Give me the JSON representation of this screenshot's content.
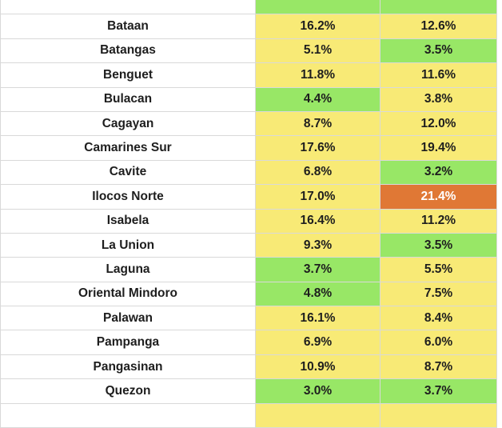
{
  "colors": {
    "yellow": "#f8ea76",
    "green": "#98e766",
    "orange": "#e07835"
  },
  "rows": [
    {
      "name": "",
      "a": "",
      "b": "",
      "a_color": "green",
      "b_color": "green"
    },
    {
      "name": "Bataan",
      "a": "16.2%",
      "b": "12.6%",
      "a_color": "yellow",
      "b_color": "yellow"
    },
    {
      "name": "Batangas",
      "a": "5.1%",
      "b": "3.5%",
      "a_color": "yellow",
      "b_color": "green"
    },
    {
      "name": "Benguet",
      "a": "11.8%",
      "b": "11.6%",
      "a_color": "yellow",
      "b_color": "yellow"
    },
    {
      "name": "Bulacan",
      "a": "4.4%",
      "b": "3.8%",
      "a_color": "green",
      "b_color": "yellow"
    },
    {
      "name": "Cagayan",
      "a": "8.7%",
      "b": "12.0%",
      "a_color": "yellow",
      "b_color": "yellow"
    },
    {
      "name": "Camarines Sur",
      "a": "17.6%",
      "b": "19.4%",
      "a_color": "yellow",
      "b_color": "yellow"
    },
    {
      "name": "Cavite",
      "a": "6.8%",
      "b": "3.2%",
      "a_color": "yellow",
      "b_color": "green"
    },
    {
      "name": "Ilocos Norte",
      "a": "17.0%",
      "b": "21.4%",
      "a_color": "yellow",
      "b_color": "orange"
    },
    {
      "name": "Isabela",
      "a": "16.4%",
      "b": "11.2%",
      "a_color": "yellow",
      "b_color": "yellow"
    },
    {
      "name": "La Union",
      "a": "9.3%",
      "b": "3.5%",
      "a_color": "yellow",
      "b_color": "green"
    },
    {
      "name": "Laguna",
      "a": "3.7%",
      "b": "5.5%",
      "a_color": "green",
      "b_color": "yellow"
    },
    {
      "name": "Oriental Mindoro",
      "a": "4.8%",
      "b": "7.5%",
      "a_color": "green",
      "b_color": "yellow"
    },
    {
      "name": "Palawan",
      "a": "16.1%",
      "b": "8.4%",
      "a_color": "yellow",
      "b_color": "yellow"
    },
    {
      "name": "Pampanga",
      "a": "6.9%",
      "b": "6.0%",
      "a_color": "yellow",
      "b_color": "yellow"
    },
    {
      "name": "Pangasinan",
      "a": "10.9%",
      "b": "8.7%",
      "a_color": "yellow",
      "b_color": "yellow"
    },
    {
      "name": "Quezon",
      "a": "3.0%",
      "b": "3.7%",
      "a_color": "green",
      "b_color": "green"
    },
    {
      "name": "",
      "a": "",
      "b": "",
      "a_color": "yellow",
      "b_color": "yellow"
    }
  ]
}
